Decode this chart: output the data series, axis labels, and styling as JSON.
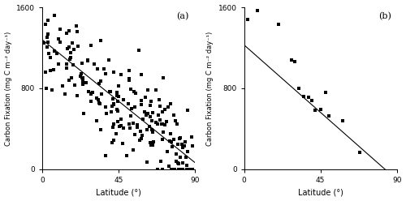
{
  "slope_a": -13.479,
  "intercept_a": 1279.3,
  "slope_b": -14.781,
  "intercept_b": 1227.1,
  "xlim": [
    0,
    90
  ],
  "ylim": [
    0,
    1600
  ],
  "xticks": [
    0,
    45,
    90
  ],
  "yticks": [
    0,
    800,
    1600
  ],
  "xlabel": "Latitude (°)",
  "ylabel": "Carbon Fixation (mg C m⁻² day⁻¹)",
  "label_a": "(a)",
  "label_b": "(b)",
  "marker": "s",
  "markersize": 3.0,
  "linecolor": "black",
  "markercolor": "black",
  "background": "white",
  "noise_std": 230,
  "seed": 12345,
  "scatter_b_x": [
    2,
    8,
    20,
    28,
    30,
    32,
    35,
    38,
    40,
    42,
    45,
    48,
    50,
    58,
    68
  ],
  "scatter_b_y": [
    1480,
    1570,
    1430,
    1080,
    1060,
    800,
    720,
    710,
    680,
    580,
    590,
    760,
    530,
    480,
    170
  ]
}
